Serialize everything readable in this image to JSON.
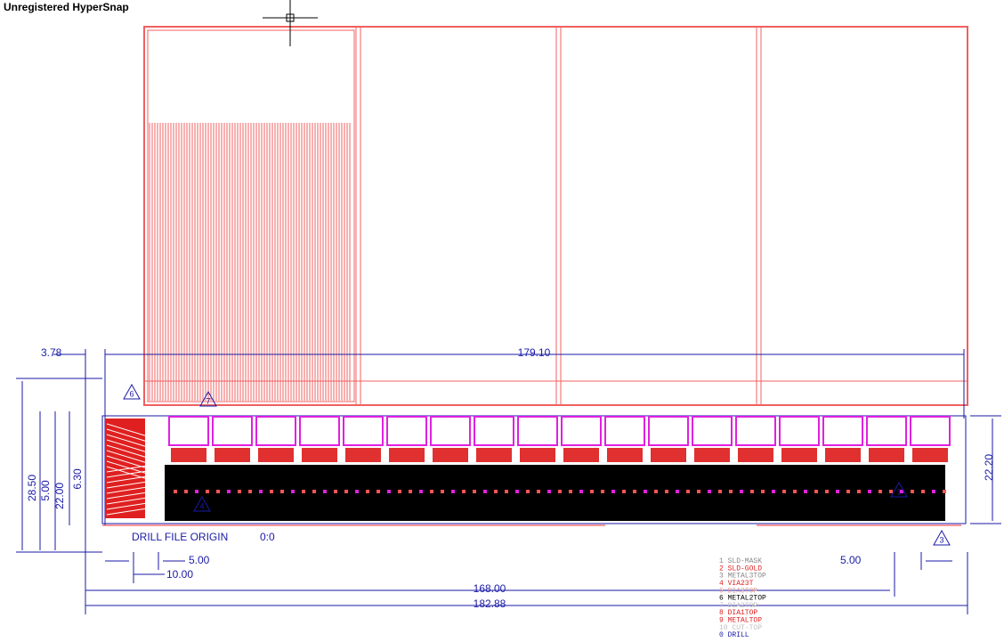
{
  "header": {
    "title": "Unregistered HyperSnap"
  },
  "dimensions": {
    "left_offset": "3.78",
    "width_top": "179.10",
    "height_right": "22.20",
    "height_left": "28.50",
    "v1": "5.00",
    "v2": "22.00",
    "v3": "6.30",
    "bottom_small": "5.00",
    "bottom_offset": "10.00",
    "width_inner": "168.00",
    "width_total": "182.88",
    "right_small": "5.00"
  },
  "origin": {
    "label": "DRILL FILE ORIGIN",
    "coords": "0:0"
  },
  "markers": [
    "6",
    "7",
    "4",
    "3",
    "1"
  ],
  "layers": [
    "1 SLD-MASK",
    "2 SLD-GOLD",
    "3 METAL3TOP",
    "4 VIA23T",
    "5 DIA3TOP",
    "6 METAL2TOP",
    "7 DIA2TOP",
    "8 DIA1TOP",
    "9 METALTOP",
    "10 CUT-TOP",
    "0 DRILL"
  ]
}
